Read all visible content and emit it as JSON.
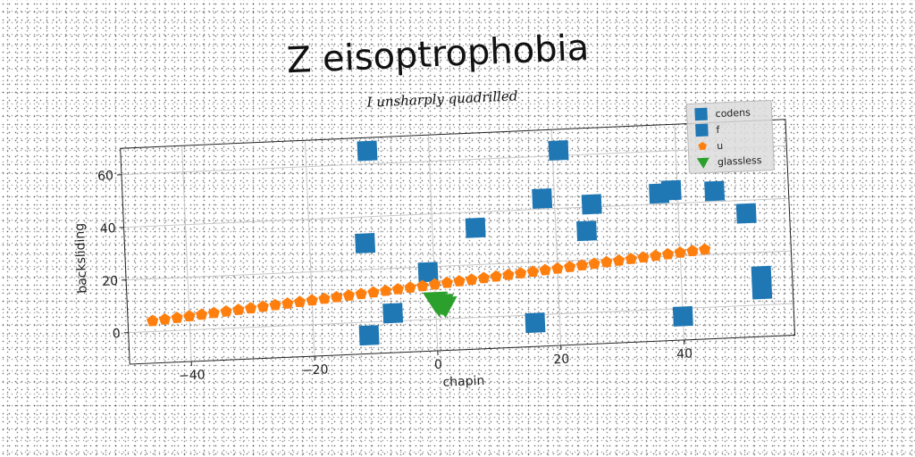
{
  "chart_data": {
    "type": "scatter",
    "title": "Z eisoptrophobia",
    "subtitle": "I unsharply quadrilled",
    "xlabel": "chapin",
    "ylabel": "backsliding",
    "xlim": [
      -50,
      58
    ],
    "ylim": [
      -12,
      70
    ],
    "xticks": [
      -40,
      -20,
      0,
      20,
      40
    ],
    "yticks": [
      0,
      20,
      40,
      60
    ],
    "grid": true,
    "legend_position": "top-right",
    "series": [
      {
        "name": "codens",
        "marker": "square",
        "color": "#1f77b4",
        "x": [],
        "y": []
      },
      {
        "name": "f",
        "marker": "square",
        "color": "#1f77b4",
        "x": [
          -10,
          21,
          -11,
          7,
          18,
          26,
          37,
          39,
          46,
          51,
          25,
          -1,
          53,
          53,
          -7,
          -11,
          16,
          40
        ],
        "y": [
          65,
          62,
          30,
          34,
          44,
          41,
          44,
          45,
          44,
          35,
          31,
          18,
          11,
          6,
          3,
          -5,
          -3,
          -3
        ]
      },
      {
        "name": "u",
        "marker": "pentagon",
        "color": "#ff7f0e",
        "x": [
          -46,
          -44,
          -42,
          -40,
          -38,
          -36,
          -34,
          -32,
          -30,
          -28,
          -26,
          -24,
          -22,
          -20,
          -18,
          -16,
          -14,
          -12,
          -10,
          -8,
          -6,
          -4,
          -2,
          0,
          2,
          4,
          6,
          8,
          10,
          12,
          14,
          16,
          18,
          20,
          22,
          24,
          26,
          28,
          30,
          32,
          34,
          36,
          38,
          40,
          42,
          44
        ],
        "y": [
          4.0,
          4.4,
          4.8,
          5.2,
          5.6,
          6.0,
          6.4,
          6.8,
          7.2,
          7.6,
          8.0,
          8.4,
          8.8,
          9.2,
          9.6,
          10.0,
          10.4,
          10.8,
          11.2,
          11.6,
          12.0,
          12.4,
          12.8,
          13.2,
          13.6,
          14.0,
          14.4,
          14.8,
          15.2,
          15.6,
          16.0,
          16.4,
          16.8,
          17.2,
          17.6,
          18.0,
          18.4,
          18.8,
          19.2,
          19.6,
          20.0,
          20.4,
          20.8,
          21.2,
          21.6,
          22.0
        ]
      },
      {
        "name": "glassless",
        "marker": "triangle-down",
        "color": "#2ca02c",
        "x": [
          0,
          1,
          1.5,
          0.5
        ],
        "y": [
          7,
          6,
          5,
          5.5
        ]
      }
    ]
  }
}
